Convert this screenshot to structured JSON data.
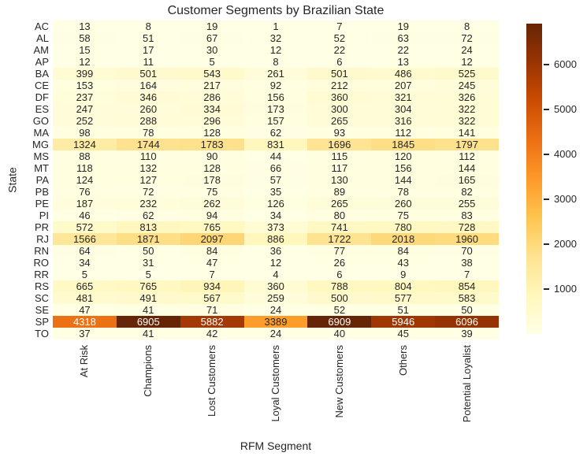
{
  "chart_data": {
    "type": "heatmap",
    "title": "Customer Segments by Brazilian State",
    "xlabel": "RFM Segment",
    "ylabel": "State",
    "legend_position": "colorbar-right",
    "grid": false,
    "columns": [
      "At Risk",
      "Champions",
      "Lost Customers",
      "Loyal Customers",
      "New Customers",
      "Others",
      "Potential Loyalist"
    ],
    "rows": [
      "AC",
      "AL",
      "AM",
      "AP",
      "BA",
      "CE",
      "DF",
      "ES",
      "GO",
      "MA",
      "MG",
      "MS",
      "MT",
      "PA",
      "PB",
      "PE",
      "PI",
      "PR",
      "RJ",
      "RN",
      "RO",
      "RR",
      "RS",
      "SC",
      "SE",
      "SP",
      "TO"
    ],
    "values": [
      [
        13,
        8,
        19,
        1,
        7,
        19,
        8
      ],
      [
        58,
        51,
        67,
        32,
        52,
        63,
        72
      ],
      [
        15,
        17,
        30,
        12,
        22,
        22,
        24
      ],
      [
        12,
        11,
        5,
        8,
        6,
        13,
        12
      ],
      [
        399,
        501,
        543,
        261,
        501,
        486,
        525
      ],
      [
        153,
        164,
        217,
        92,
        212,
        207,
        245
      ],
      [
        237,
        346,
        286,
        156,
        360,
        321,
        326
      ],
      [
        247,
        260,
        334,
        173,
        300,
        304,
        322
      ],
      [
        252,
        288,
        296,
        157,
        265,
        316,
        322
      ],
      [
        98,
        78,
        128,
        62,
        93,
        112,
        141
      ],
      [
        1324,
        1744,
        1783,
        831,
        1696,
        1845,
        1797
      ],
      [
        88,
        110,
        90,
        44,
        115,
        120,
        112
      ],
      [
        118,
        132,
        128,
        66,
        117,
        156,
        144
      ],
      [
        124,
        127,
        178,
        57,
        130,
        144,
        165
      ],
      [
        76,
        72,
        75,
        35,
        89,
        78,
        82
      ],
      [
        187,
        232,
        262,
        126,
        265,
        260,
        255
      ],
      [
        46,
        62,
        94,
        34,
        80,
        75,
        83
      ],
      [
        572,
        813,
        765,
        373,
        741,
        780,
        728
      ],
      [
        1566,
        1871,
        2097,
        886,
        1722,
        2018,
        1960
      ],
      [
        64,
        50,
        84,
        36,
        77,
        84,
        70
      ],
      [
        34,
        31,
        47,
        12,
        26,
        43,
        38
      ],
      [
        5,
        5,
        7,
        4,
        6,
        9,
        7
      ],
      [
        665,
        765,
        934,
        360,
        788,
        804,
        854
      ],
      [
        481,
        491,
        567,
        259,
        500,
        577,
        583
      ],
      [
        47,
        41,
        71,
        24,
        52,
        51,
        50
      ],
      [
        4318,
        6905,
        5882,
        3389,
        6909,
        5946,
        6096
      ],
      [
        37,
        41,
        42,
        24,
        40,
        45,
        39
      ]
    ],
    "vmin": 1,
    "vmax": 6909,
    "colormap": {
      "name": "YlOrBr",
      "stops": [
        "#ffffe5",
        "#fff7bc",
        "#fee391",
        "#fec44f",
        "#fe9929",
        "#ec7014",
        "#cc4c02",
        "#993404",
        "#662506"
      ]
    },
    "annotation_text_dark": "#262626",
    "annotation_text_light": "#ffffff",
    "colorbar_ticks": [
      "1000",
      "2000",
      "3000",
      "4000",
      "5000",
      "6000"
    ]
  }
}
